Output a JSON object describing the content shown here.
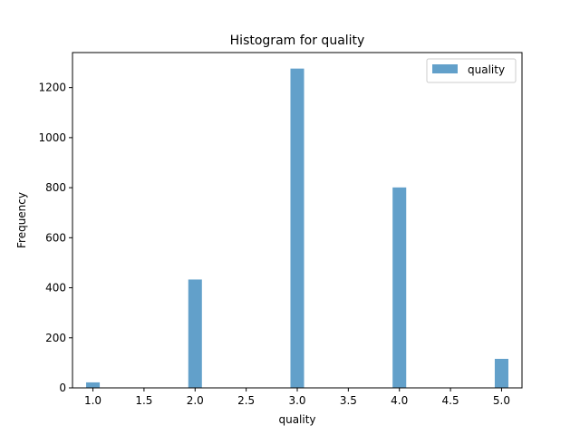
{
  "chart_data": {
    "type": "bar",
    "title": "Histogram for quality",
    "xlabel": "quality",
    "ylabel": "Frequency",
    "xlim": [
      0.8,
      5.2
    ],
    "ylim": [
      0,
      1340
    ],
    "xticks": [
      "1.0",
      "1.5",
      "2.0",
      "2.5",
      "3.0",
      "3.5",
      "4.0",
      "4.5",
      "5.0"
    ],
    "yticks": [
      "0",
      "200",
      "400",
      "600",
      "800",
      "1000",
      "1200"
    ],
    "bin_width": 0.1333,
    "grid": false,
    "legend_position": "top-right",
    "series": [
      {
        "name": "quality",
        "color": "#1f77b4",
        "opacity": 0.7,
        "bins": [
          {
            "x": 1.0,
            "value": 22
          },
          {
            "x": 2.0,
            "value": 433
          },
          {
            "x": 3.0,
            "value": 1276
          },
          {
            "x": 4.0,
            "value": 801
          },
          {
            "x": 5.0,
            "value": 116
          }
        ]
      }
    ]
  }
}
